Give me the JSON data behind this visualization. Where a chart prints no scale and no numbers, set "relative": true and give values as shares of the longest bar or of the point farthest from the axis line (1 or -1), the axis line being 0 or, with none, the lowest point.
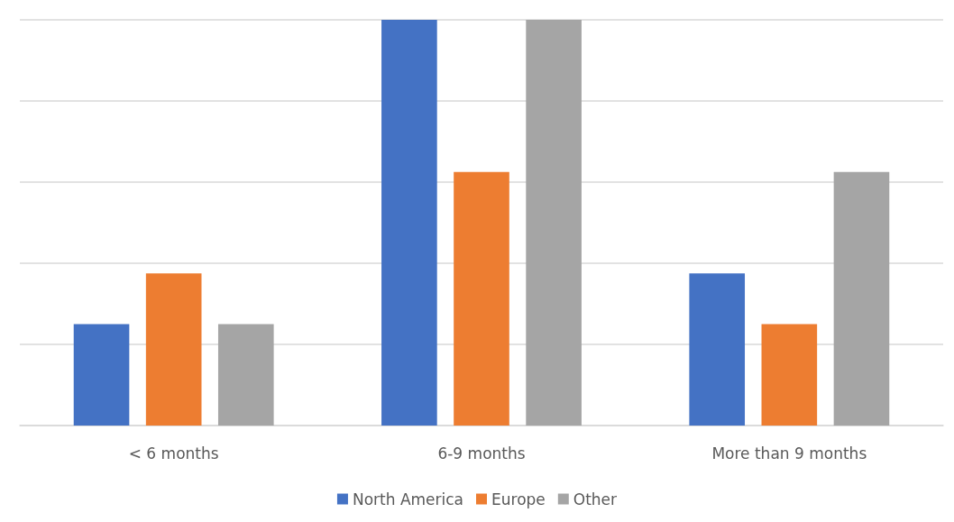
{
  "chart_data": {
    "type": "bar",
    "relative": true,
    "categories": [
      "< 6 months",
      "6-9 months",
      "More than 9 months"
    ],
    "series": [
      {
        "name": "North America",
        "color": "#4472c4",
        "values": [
          0.25,
          1,
          0.375
        ]
      },
      {
        "name": "Europe",
        "color": "#ed7d31",
        "values": [
          0.375,
          0.625,
          0.25
        ]
      },
      {
        "name": "Other",
        "color": "#a5a5a5",
        "values": [
          0.25,
          1,
          0.625
        ]
      }
    ],
    "grid": "y",
    "legend": "bottom"
  }
}
